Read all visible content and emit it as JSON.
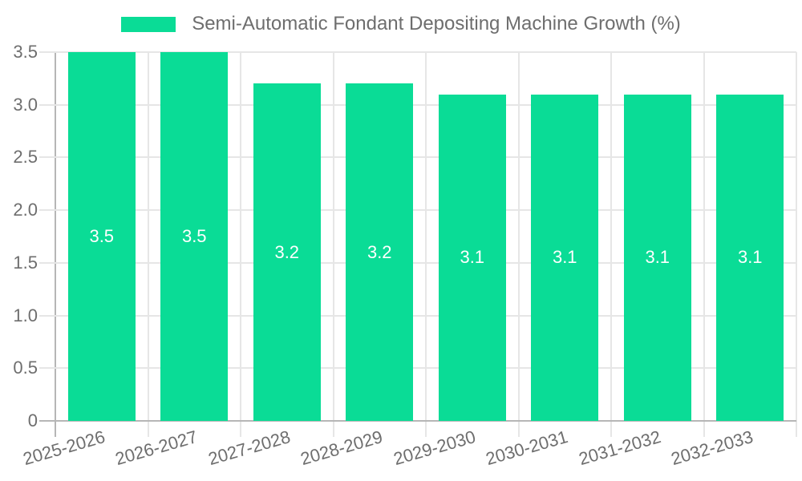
{
  "chart_data": {
    "type": "bar",
    "title": "Semi-Automatic Fondant Depositing Machine Growth (%)",
    "categories": [
      "2025-2026",
      "2026-2027",
      "2027-2028",
      "2028-2029",
      "2029-2030",
      "2030-2031",
      "2031-2032",
      "2032-2033"
    ],
    "values": [
      3.5,
      3.5,
      3.2,
      3.2,
      3.1,
      3.1,
      3.1,
      3.1
    ],
    "value_labels": [
      "3.5",
      "3.5",
      "3.2",
      "3.2",
      "3.1",
      "3.1",
      "3.1",
      "3.1"
    ],
    "xlabel": "",
    "ylabel": "",
    "ylim": [
      0,
      3.5
    ],
    "ytick_labels": [
      "0",
      "0.5",
      "1.0",
      "1.5",
      "2.0",
      "2.5",
      "3.0",
      "3.5"
    ],
    "grid": true,
    "legend_position": "top",
    "colors": {
      "bar": "#0adc96",
      "grid_light": "#e6e6e6",
      "axis_dark": "#b6b6b6",
      "text": "#6e6e6e",
      "value_label": "#ffffff",
      "background": "#ffffff"
    }
  }
}
